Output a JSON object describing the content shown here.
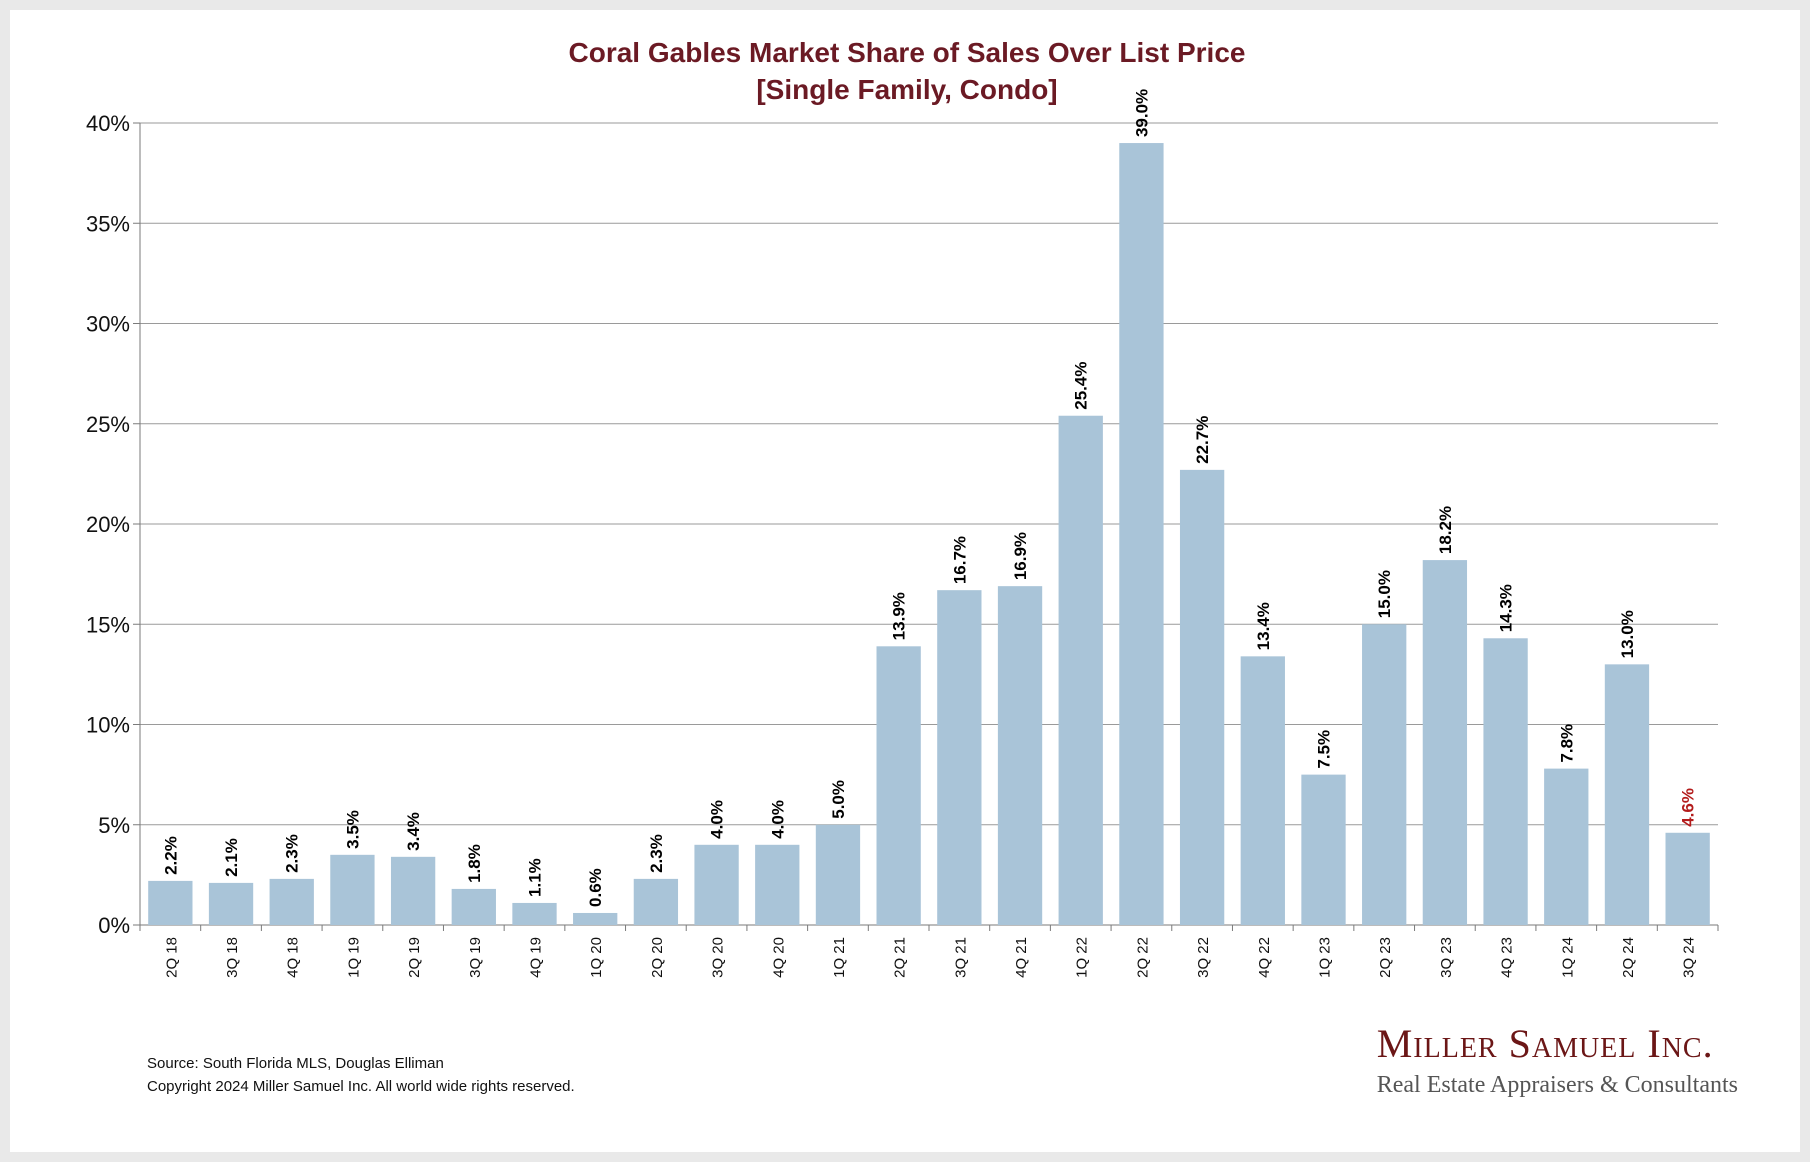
{
  "chart_data": {
    "type": "bar",
    "title": "Coral Gables Market Share of Sales Over List Price",
    "subtitle": "[Single Family, Condo]",
    "xlabel": "",
    "ylabel": "",
    "ylim": [
      0,
      40
    ],
    "y_ticks": [
      "0%",
      "5%",
      "10%",
      "15%",
      "20%",
      "25%",
      "30%",
      "35%",
      "40%"
    ],
    "categories": [
      "2Q 18",
      "3Q 18",
      "4Q 18",
      "1Q 19",
      "2Q 19",
      "3Q 19",
      "4Q 19",
      "1Q 20",
      "2Q 20",
      "3Q 20",
      "4Q 20",
      "1Q 21",
      "2Q 21",
      "3Q 21",
      "4Q 21",
      "1Q 22",
      "2Q 22",
      "3Q 22",
      "4Q 22",
      "1Q 23",
      "2Q 23",
      "3Q 23",
      "4Q 23",
      "1Q 24",
      "2Q 24",
      "3Q 24"
    ],
    "values": [
      2.2,
      2.1,
      2.3,
      3.5,
      3.4,
      1.8,
      1.1,
      0.6,
      2.3,
      4.0,
      4.0,
      5.0,
      13.9,
      16.7,
      16.9,
      25.4,
      39.0,
      22.7,
      13.4,
      7.5,
      15.0,
      18.2,
      14.3,
      7.8,
      13.0,
      4.6
    ],
    "labels": [
      "2.2%",
      "2.1%",
      "2.3%",
      "3.5%",
      "3.4%",
      "1.8%",
      "1.1%",
      "0.6%",
      "2.3%",
      "4.0%",
      "4.0%",
      "5.0%",
      "13.9%",
      "16.7%",
      "16.9%",
      "25.4%",
      "39.0%",
      "22.7%",
      "13.4%",
      "7.5%",
      "15.0%",
      "18.2%",
      "14.3%",
      "7.8%",
      "13.0%",
      "4.6%"
    ],
    "grid": true,
    "colors": {
      "bar": "#a9c4d8",
      "title": "#6b1a24",
      "highlight_label": "#b31b1b",
      "label": "#000000",
      "grid": "#9a9a9a"
    },
    "highlight_index": 25
  },
  "footer": {
    "source": "Source: South Florida MLS, Douglas Elliman",
    "copyright": "Copyright 2024 Miller Samuel Inc.  All world wide rights reserved."
  },
  "logo": {
    "name": "Miller Samuel Inc.",
    "tagline": "Real Estate Appraisers & Consultants"
  }
}
